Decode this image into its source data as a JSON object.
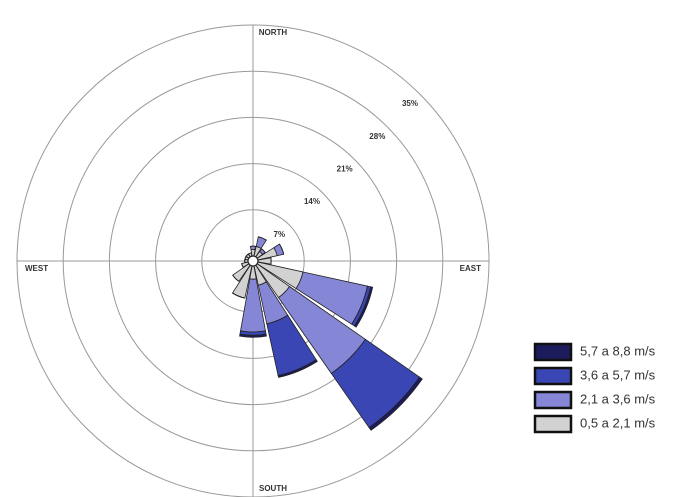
{
  "chart_data": {
    "type": "windrose",
    "categories": [
      "NORTH",
      null,
      null,
      null,
      "EAST",
      null,
      null,
      null,
      "SOUTH",
      null,
      null,
      null,
      "WEST",
      null,
      null,
      null
    ],
    "rlim": [
      0,
      35
    ],
    "rticks": [
      {
        "value": 7,
        "label": "7%"
      },
      {
        "value": 14,
        "label": "14%"
      },
      {
        "value": 21,
        "label": "21%"
      },
      {
        "value": 28,
        "label": "28%"
      },
      {
        "value": 35,
        "label": "35%"
      }
    ],
    "series": [
      {
        "name": "0,5 a 2,1 m/s",
        "color": "#d2d2d2",
        "values": [
          1,
          1.5,
          1,
          3,
          2,
          7,
          6,
          3,
          2,
          5,
          3,
          1,
          0.5,
          0.5,
          0.5,
          0.5
        ]
      },
      {
        "name": "2,1 a 3,6 m/s",
        "color": "#8686d6",
        "values": [
          0.5,
          1.5,
          0.5,
          1,
          0,
          10,
          14,
          6,
          8,
          0,
          0,
          0,
          0,
          0,
          0,
          0
        ]
      },
      {
        "name": "3,6 a 5,7 m/s",
        "color": "#3a46b4",
        "values": [
          0,
          0,
          0,
          0,
          0,
          0.5,
          10,
          8,
          0.5,
          0,
          0,
          0,
          0,
          0,
          0,
          0
        ]
      },
      {
        "name": "5,7 a 8,8 m/s",
        "color": "#1c1c5c",
        "values": [
          0,
          0,
          0,
          0,
          0,
          0.3,
          0.5,
          0.3,
          0.3,
          0,
          0,
          0,
          0,
          0,
          0,
          0
        ]
      }
    ]
  }
}
